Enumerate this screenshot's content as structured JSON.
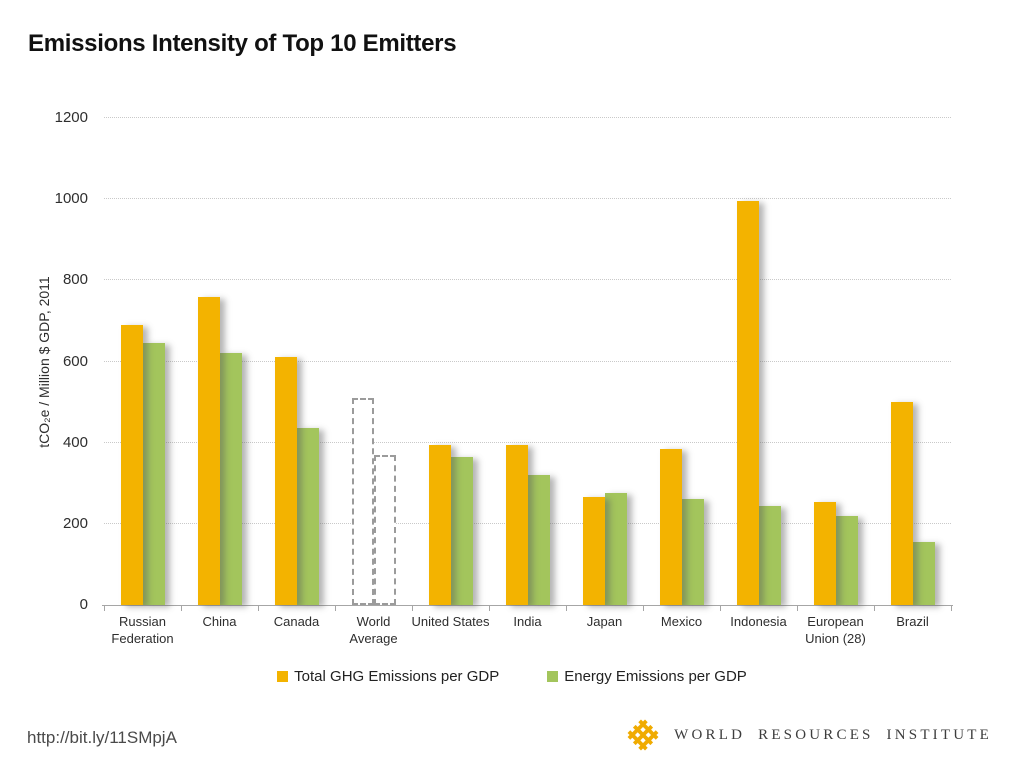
{
  "header": {
    "title": "Emissions Intensity of Top 10 Emitters"
  },
  "chart_data": {
    "type": "bar",
    "title": "Emissions Intensity of Top 10 Emitters",
    "xlabel": "",
    "ylabel": "tCO₂e / Million $ GDP, 2011",
    "ylim": [
      0,
      1200
    ],
    "ytick_step": 200,
    "grid": "horizontal-dotted",
    "legend_position": "bottom",
    "categories": [
      "Russian\nFederation",
      "China",
      "Canada",
      "World\nAverage",
      "United States",
      "India",
      "Japan",
      "Mexico",
      "Indonesia",
      "European\nUnion (28)",
      "Brazil"
    ],
    "series": [
      {
        "name": "Total GHG Emissions per GDP",
        "color": "#F3B300",
        "values": [
          690,
          760,
          610,
          510,
          395,
          395,
          265,
          385,
          995,
          255,
          500
        ]
      },
      {
        "name": "Energy Emissions per GDP",
        "color": "#A3C55C",
        "values": [
          645,
          620,
          435,
          370,
          365,
          320,
          275,
          260,
          245,
          220,
          155
        ]
      }
    ],
    "outline_category_index": 3,
    "outline_style": "white fill, gray dashed border (World Average reference bars)"
  },
  "legend": {
    "items": [
      {
        "label": "Total GHG Emissions per GDP",
        "color": "#F3B300"
      },
      {
        "label": "Energy Emissions per GDP",
        "color": "#A3C55C"
      }
    ]
  },
  "footer": {
    "url": "http://bit.ly/11SMpjA",
    "logo_text": "WORLD RESOURCES INSTITUTE",
    "logo_icon_color": "#F0AB00"
  },
  "colors": {
    "series_ghg": "#F3B300",
    "series_energy": "#A3C55C",
    "gridline": "#C9C9C9",
    "axis_line": "#A6A6A6",
    "dashed_outline": "#9B9B9B",
    "text": "#2E2E2E",
    "background": "#FFFFFF"
  }
}
